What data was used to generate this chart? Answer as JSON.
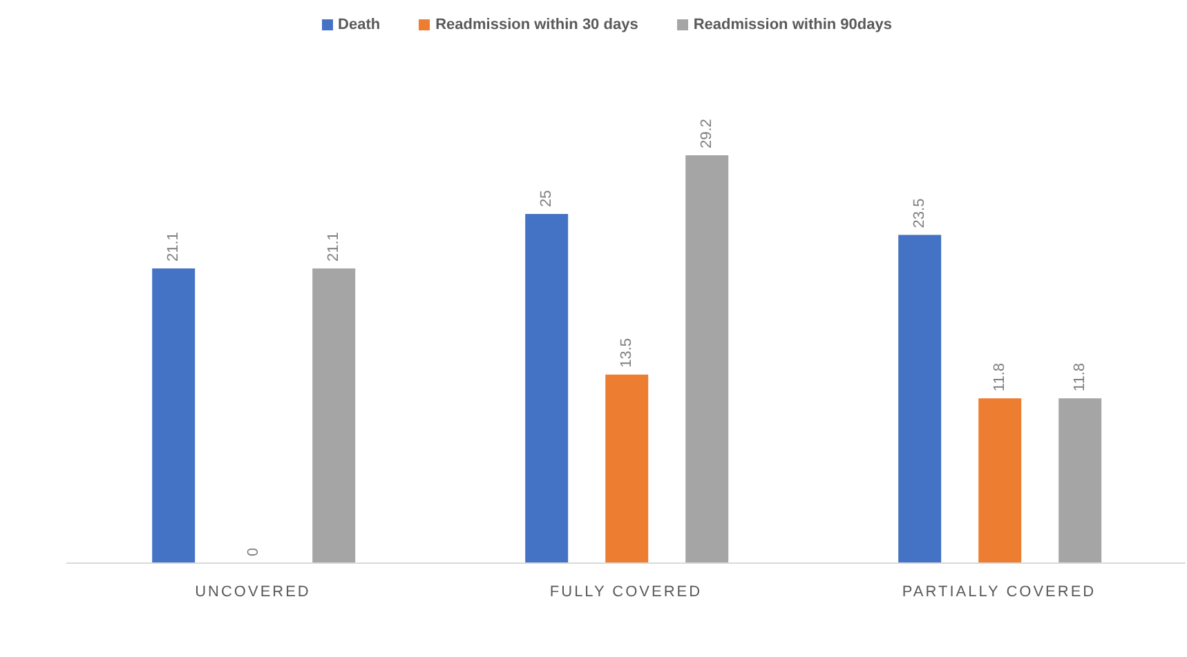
{
  "chart_data": {
    "type": "bar",
    "categories": [
      "UNCOVERED",
      "FULLY COVERED",
      "PARTIALLY COVERED"
    ],
    "series": [
      {
        "name": "Death",
        "color": "#4472c4",
        "values": [
          21.1,
          25,
          23.5
        ]
      },
      {
        "name": "Readmission within 30 days",
        "color": "#ed7d31",
        "values": [
          0,
          13.5,
          11.8
        ]
      },
      {
        "name": "Readmission within 90days",
        "color": "#a5a5a5",
        "values": [
          21.1,
          29.2,
          11.8
        ]
      }
    ],
    "data_labels": true,
    "legend": "top"
  }
}
